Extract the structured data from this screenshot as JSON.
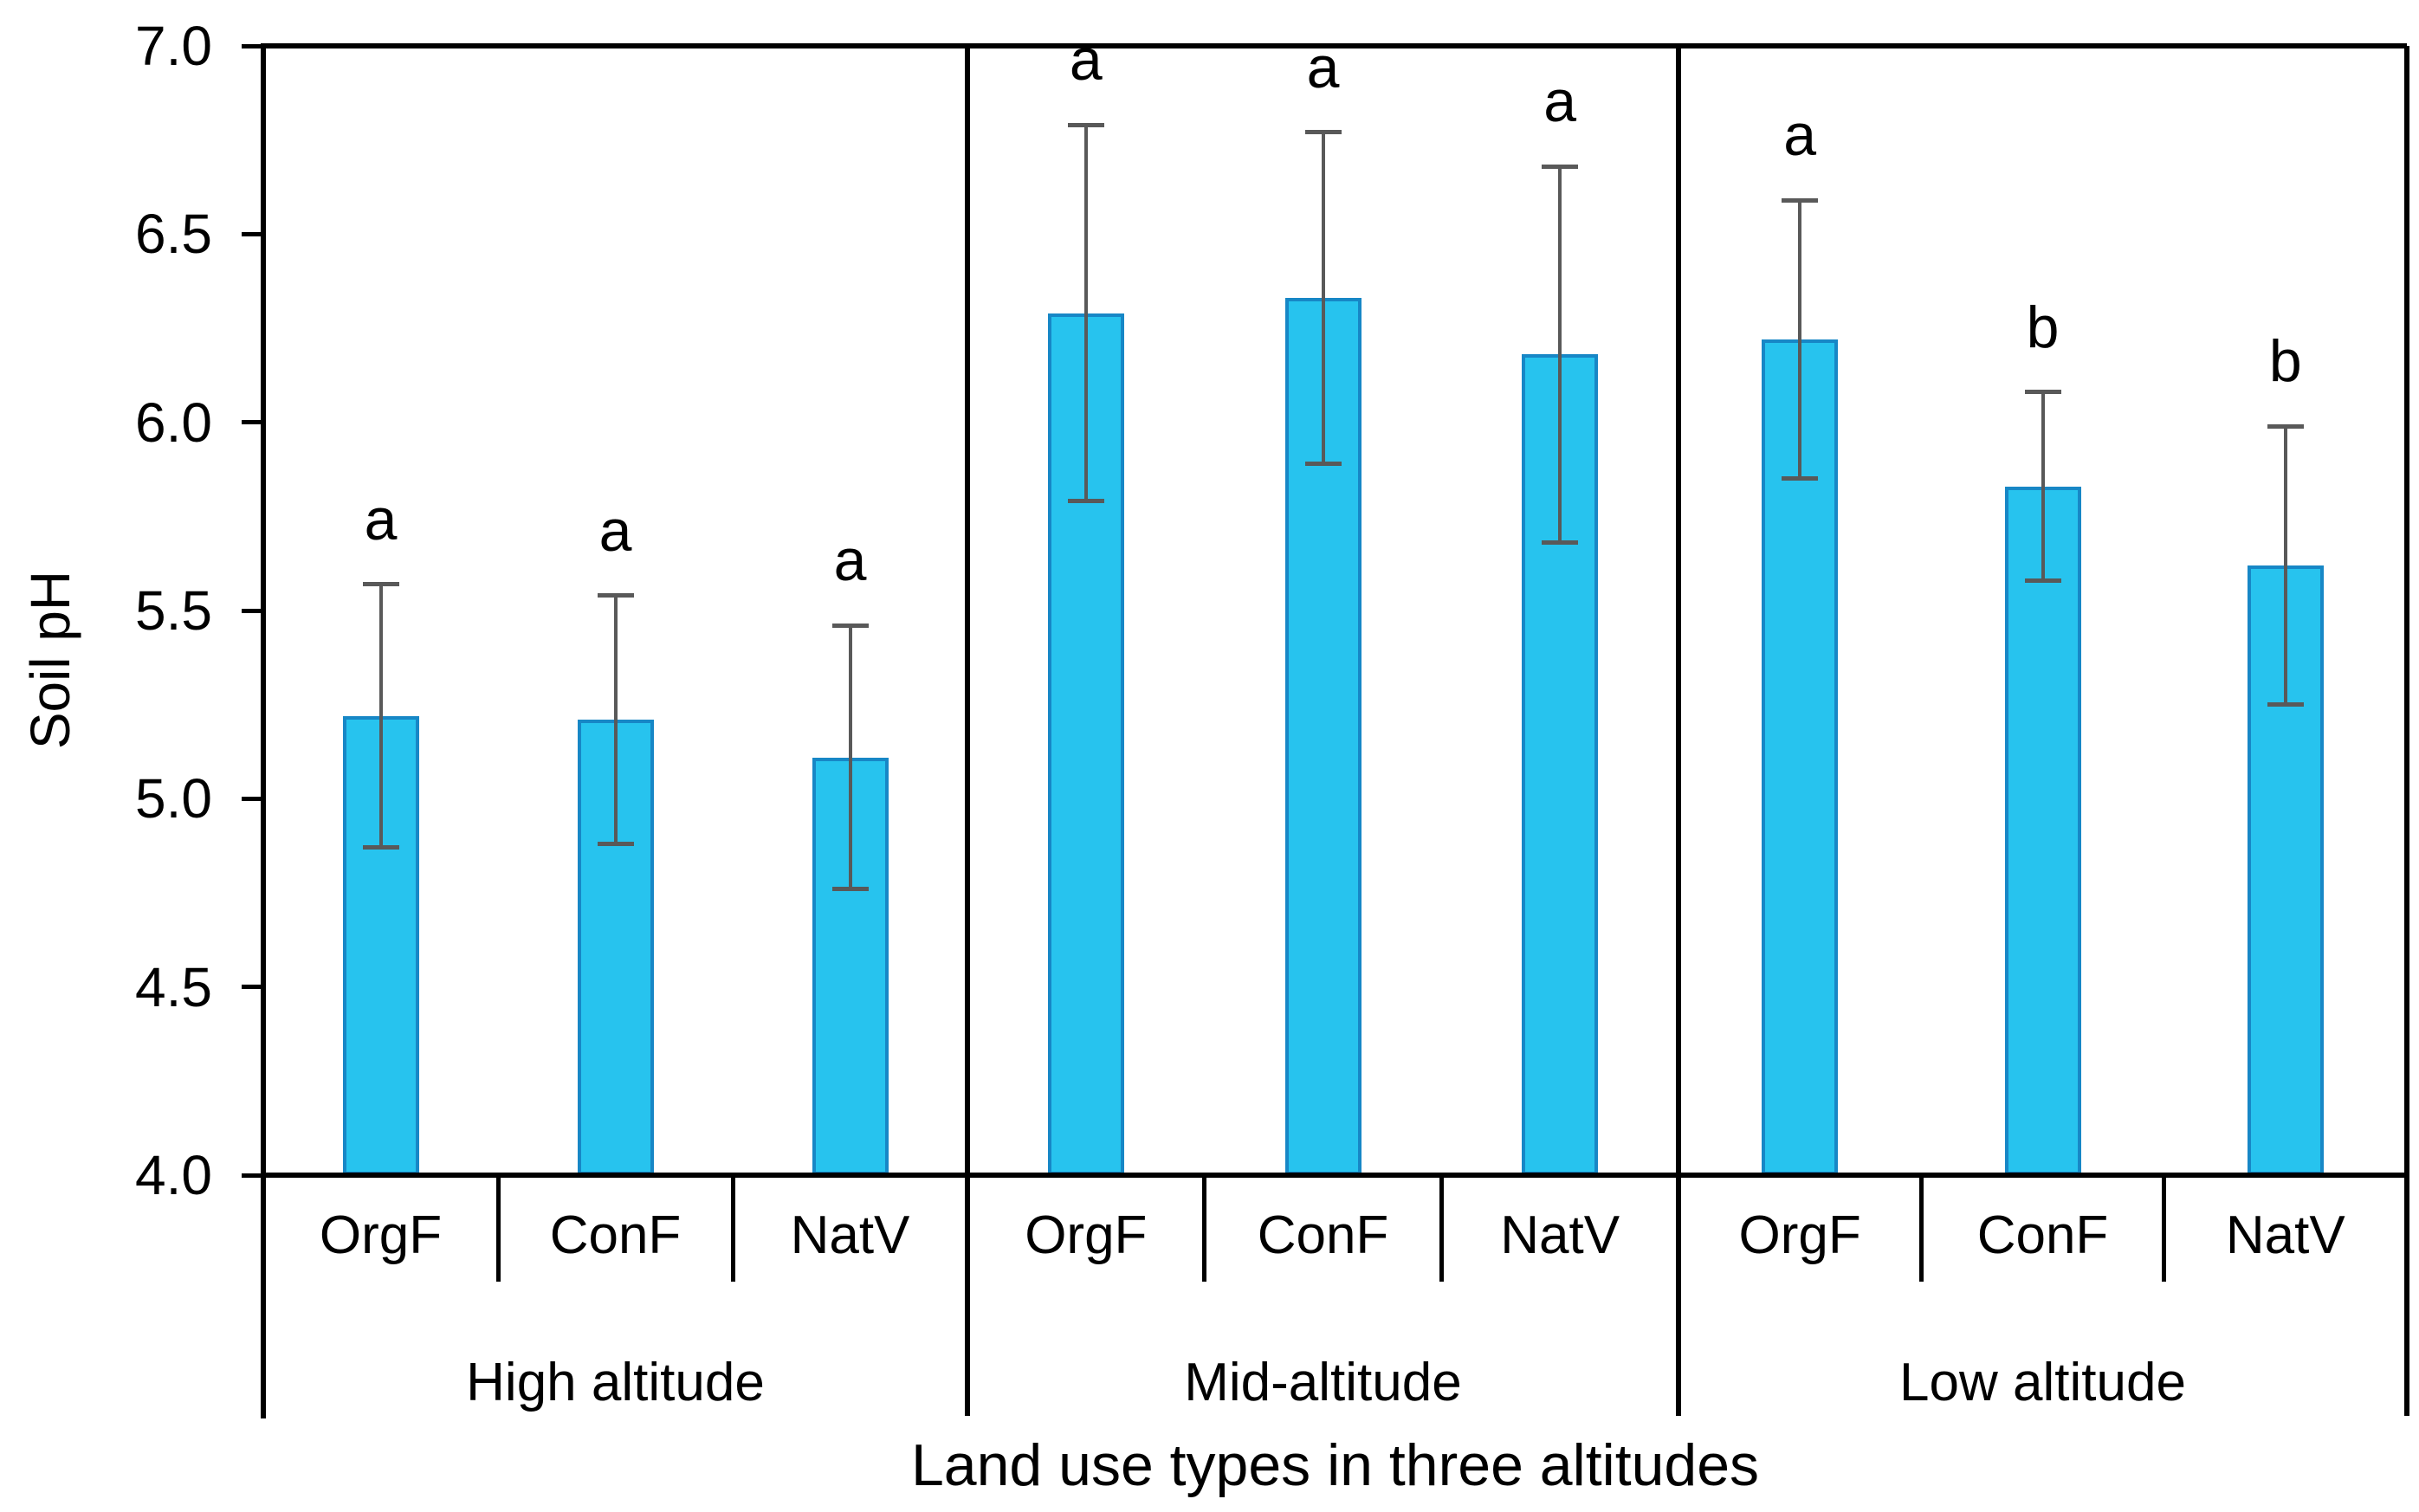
{
  "figure_title": "",
  "chart_data": {
    "type": "bar",
    "title": "",
    "ylabel": "Soil pH",
    "xlabel": "Land use types in three altitudes",
    "ylim": [
      4.0,
      7.0
    ],
    "ytick_interval": 0.5,
    "ytick_labels": [
      "4.0",
      "4.5",
      "5.0",
      "5.5",
      "6.0",
      "6.5",
      "7.0"
    ],
    "grid": false,
    "legend": "none",
    "error_bars": "plus-minus, capped",
    "groups": [
      {
        "label": "High altitude",
        "categories": [
          "OrgF",
          "ConF",
          "NatV"
        ],
        "values": [
          5.22,
          5.21,
          5.11
        ],
        "errors": [
          0.35,
          0.33,
          0.35
        ],
        "sig_letters": [
          "a",
          "a",
          "a"
        ]
      },
      {
        "label": "Mid-altitude",
        "categories": [
          "OrgF",
          "ConF",
          "NatV"
        ],
        "values": [
          6.29,
          6.33,
          6.18
        ],
        "errors": [
          0.5,
          0.44,
          0.5
        ],
        "sig_letters": [
          "a",
          "a",
          "a"
        ]
      },
      {
        "label": "Low altitude",
        "categories": [
          "OrgF",
          "ConF",
          "NatV"
        ],
        "values": [
          6.22,
          5.83,
          5.62
        ],
        "errors": [
          0.37,
          0.25,
          0.37
        ],
        "sig_letters": [
          "a",
          "b",
          "b"
        ]
      }
    ],
    "colors": {
      "bar_fill": "#27C3EE",
      "bar_border": "#1787C6",
      "error_bar": "#595959",
      "axis_line": "#000000",
      "text": "#000000"
    }
  }
}
